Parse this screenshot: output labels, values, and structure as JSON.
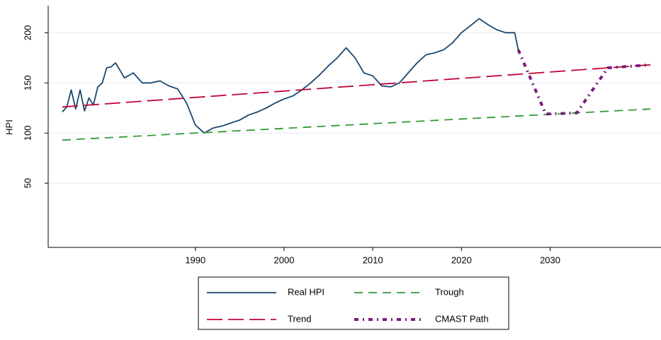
{
  "chart_data": {
    "type": "line",
    "y_label": "HPI",
    "xlim": [
      1973.4,
      2042.5
    ],
    "xticks": [
      1990,
      2000,
      2010,
      2020,
      2030
    ],
    "ylim": [
      -14,
      227
    ],
    "yticks": [
      50,
      100,
      150,
      200
    ],
    "grid": true,
    "legend": "bottom",
    "series": [
      {
        "name": "Real HPI",
        "color": "#1a476f",
        "style": "solid",
        "x": [
          1975,
          1975.5,
          1976,
          1976.5,
          1977,
          1977.5,
          1978,
          1978.5,
          1979,
          1979.5,
          1980,
          1980.5,
          1981,
          1982,
          1983,
          1984,
          1985,
          1986,
          1987,
          1988,
          1989,
          1990,
          1991,
          1992,
          1993,
          1994,
          1995,
          1996,
          1997,
          1998,
          1999,
          2000,
          2001,
          2002,
          2003,
          2004,
          2005,
          2006,
          2007,
          2008,
          2009,
          2010,
          2011,
          2012,
          2013,
          2014,
          2015,
          2016,
          2017,
          2018,
          2019,
          2020,
          2021,
          2022,
          2023,
          2024,
          2025,
          2026,
          2026.4
        ],
        "values": [
          121,
          126,
          143,
          124,
          143,
          122,
          135,
          128,
          146,
          150,
          165,
          166,
          170,
          155,
          160,
          150,
          150,
          152,
          147,
          144,
          130,
          108,
          100,
          105,
          107,
          110,
          113,
          118,
          121,
          125,
          130,
          134,
          137,
          143,
          150,
          158,
          167,
          175,
          185,
          175,
          160,
          157,
          147,
          146,
          150,
          160,
          170,
          178,
          180,
          183,
          190,
          200,
          207,
          214,
          208,
          203,
          200,
          200,
          183
        ]
      },
      {
        "name": "Trend",
        "color": "#c10534",
        "style": "longdash",
        "x": [
          1975,
          2041.3
        ],
        "values": [
          126,
          168
        ]
      },
      {
        "name": "Trough",
        "color": "#339933",
        "style": "dash",
        "x": [
          1975,
          2041.3
        ],
        "values": [
          93,
          124
        ]
      },
      {
        "name": "CMAST Path",
        "color": "#7b1c7b",
        "style": "dashdot",
        "x": [
          2026.4,
          2029.5,
          2033,
          2036.5,
          2041.3
        ],
        "values": [
          183,
          119,
          120,
          165,
          168
        ]
      }
    ]
  }
}
